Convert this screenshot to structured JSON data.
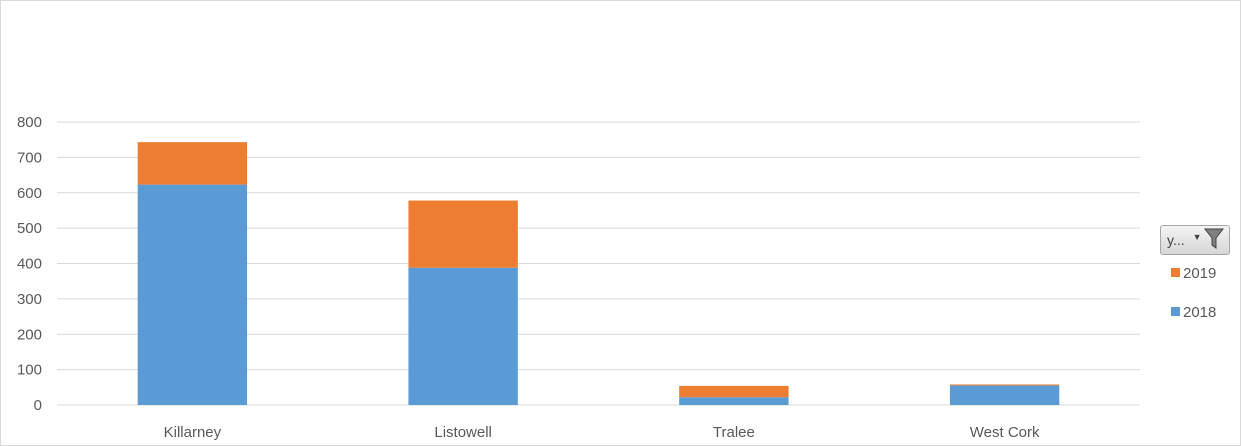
{
  "chart_data": {
    "type": "bar",
    "stacked": true,
    "categories": [
      "Killarney",
      "Listowell",
      "Tralee",
      "West Cork"
    ],
    "series": [
      {
        "name": "2018",
        "values": [
          623,
          388,
          22,
          55
        ],
        "color": "#5b9bd5"
      },
      {
        "name": "2019",
        "values": [
          120,
          190,
          32,
          3
        ],
        "color": "#ed7d31"
      }
    ],
    "ylim": [
      0,
      800
    ],
    "yticks": [
      0,
      100,
      200,
      300,
      400,
      500,
      600,
      700,
      800
    ],
    "grid": true,
    "legend_placement": "right",
    "legend_order": [
      "2019",
      "2018"
    ]
  },
  "legend": {
    "filter_button": {
      "label": "y...",
      "icon": "funnel-icon",
      "arrow_icon": "dropdown-arrow-icon"
    }
  },
  "colors": {
    "grid": "#d9d9d9",
    "axis_text": "#595959",
    "series_2018": "#5b9bd5",
    "series_2019": "#ed7d31"
  }
}
